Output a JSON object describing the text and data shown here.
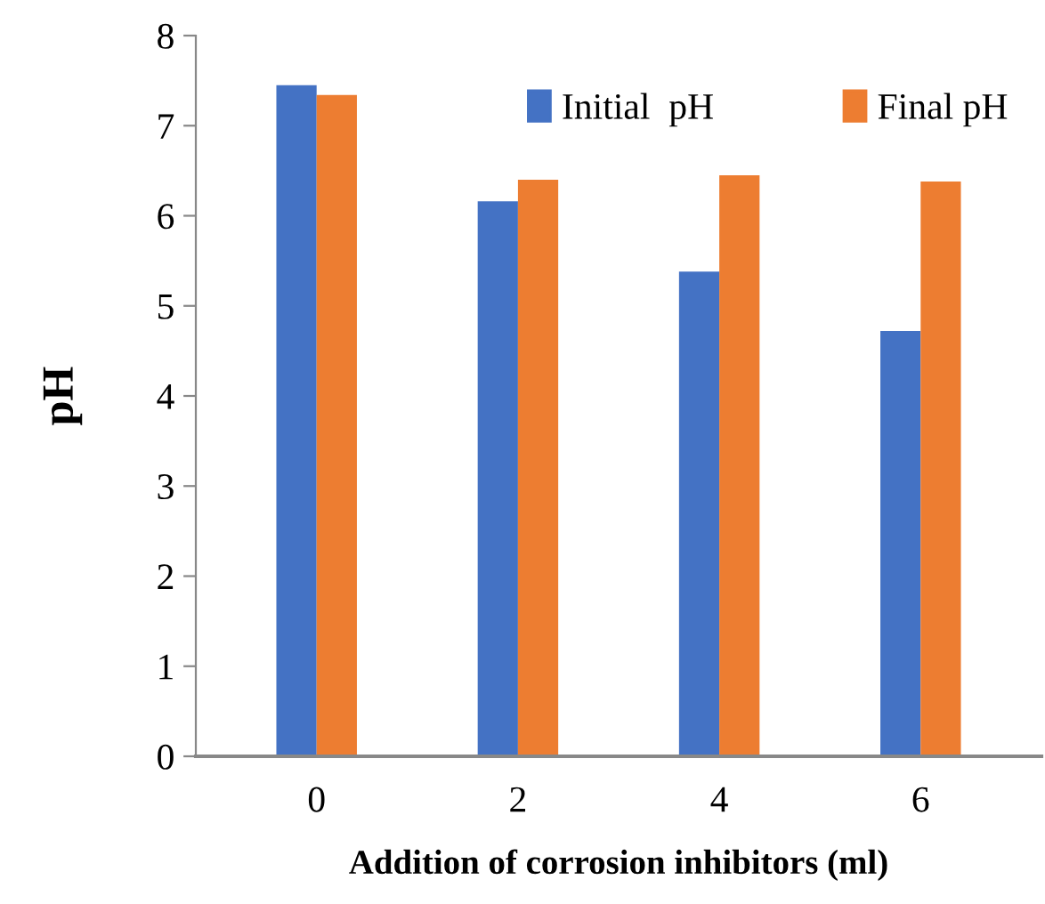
{
  "chart_data": {
    "type": "bar",
    "xlabel": "Addition of corrosion inhibitors (ml)",
    "ylabel": "pH",
    "categories": [
      "0",
      "2",
      "4",
      "6"
    ],
    "series": [
      {
        "name": "Initial  pH",
        "color": "#4472c4",
        "values": [
          7.45,
          6.16,
          5.38,
          4.72
        ]
      },
      {
        "name": "Final pH",
        "color": "#ed7d31",
        "values": [
          7.34,
          6.4,
          6.45,
          6.38
        ]
      }
    ],
    "ylim": [
      0,
      8
    ],
    "yticks": [
      0,
      1,
      2,
      3,
      4,
      5,
      6,
      7,
      8
    ],
    "grid": false,
    "legend": "top right"
  }
}
